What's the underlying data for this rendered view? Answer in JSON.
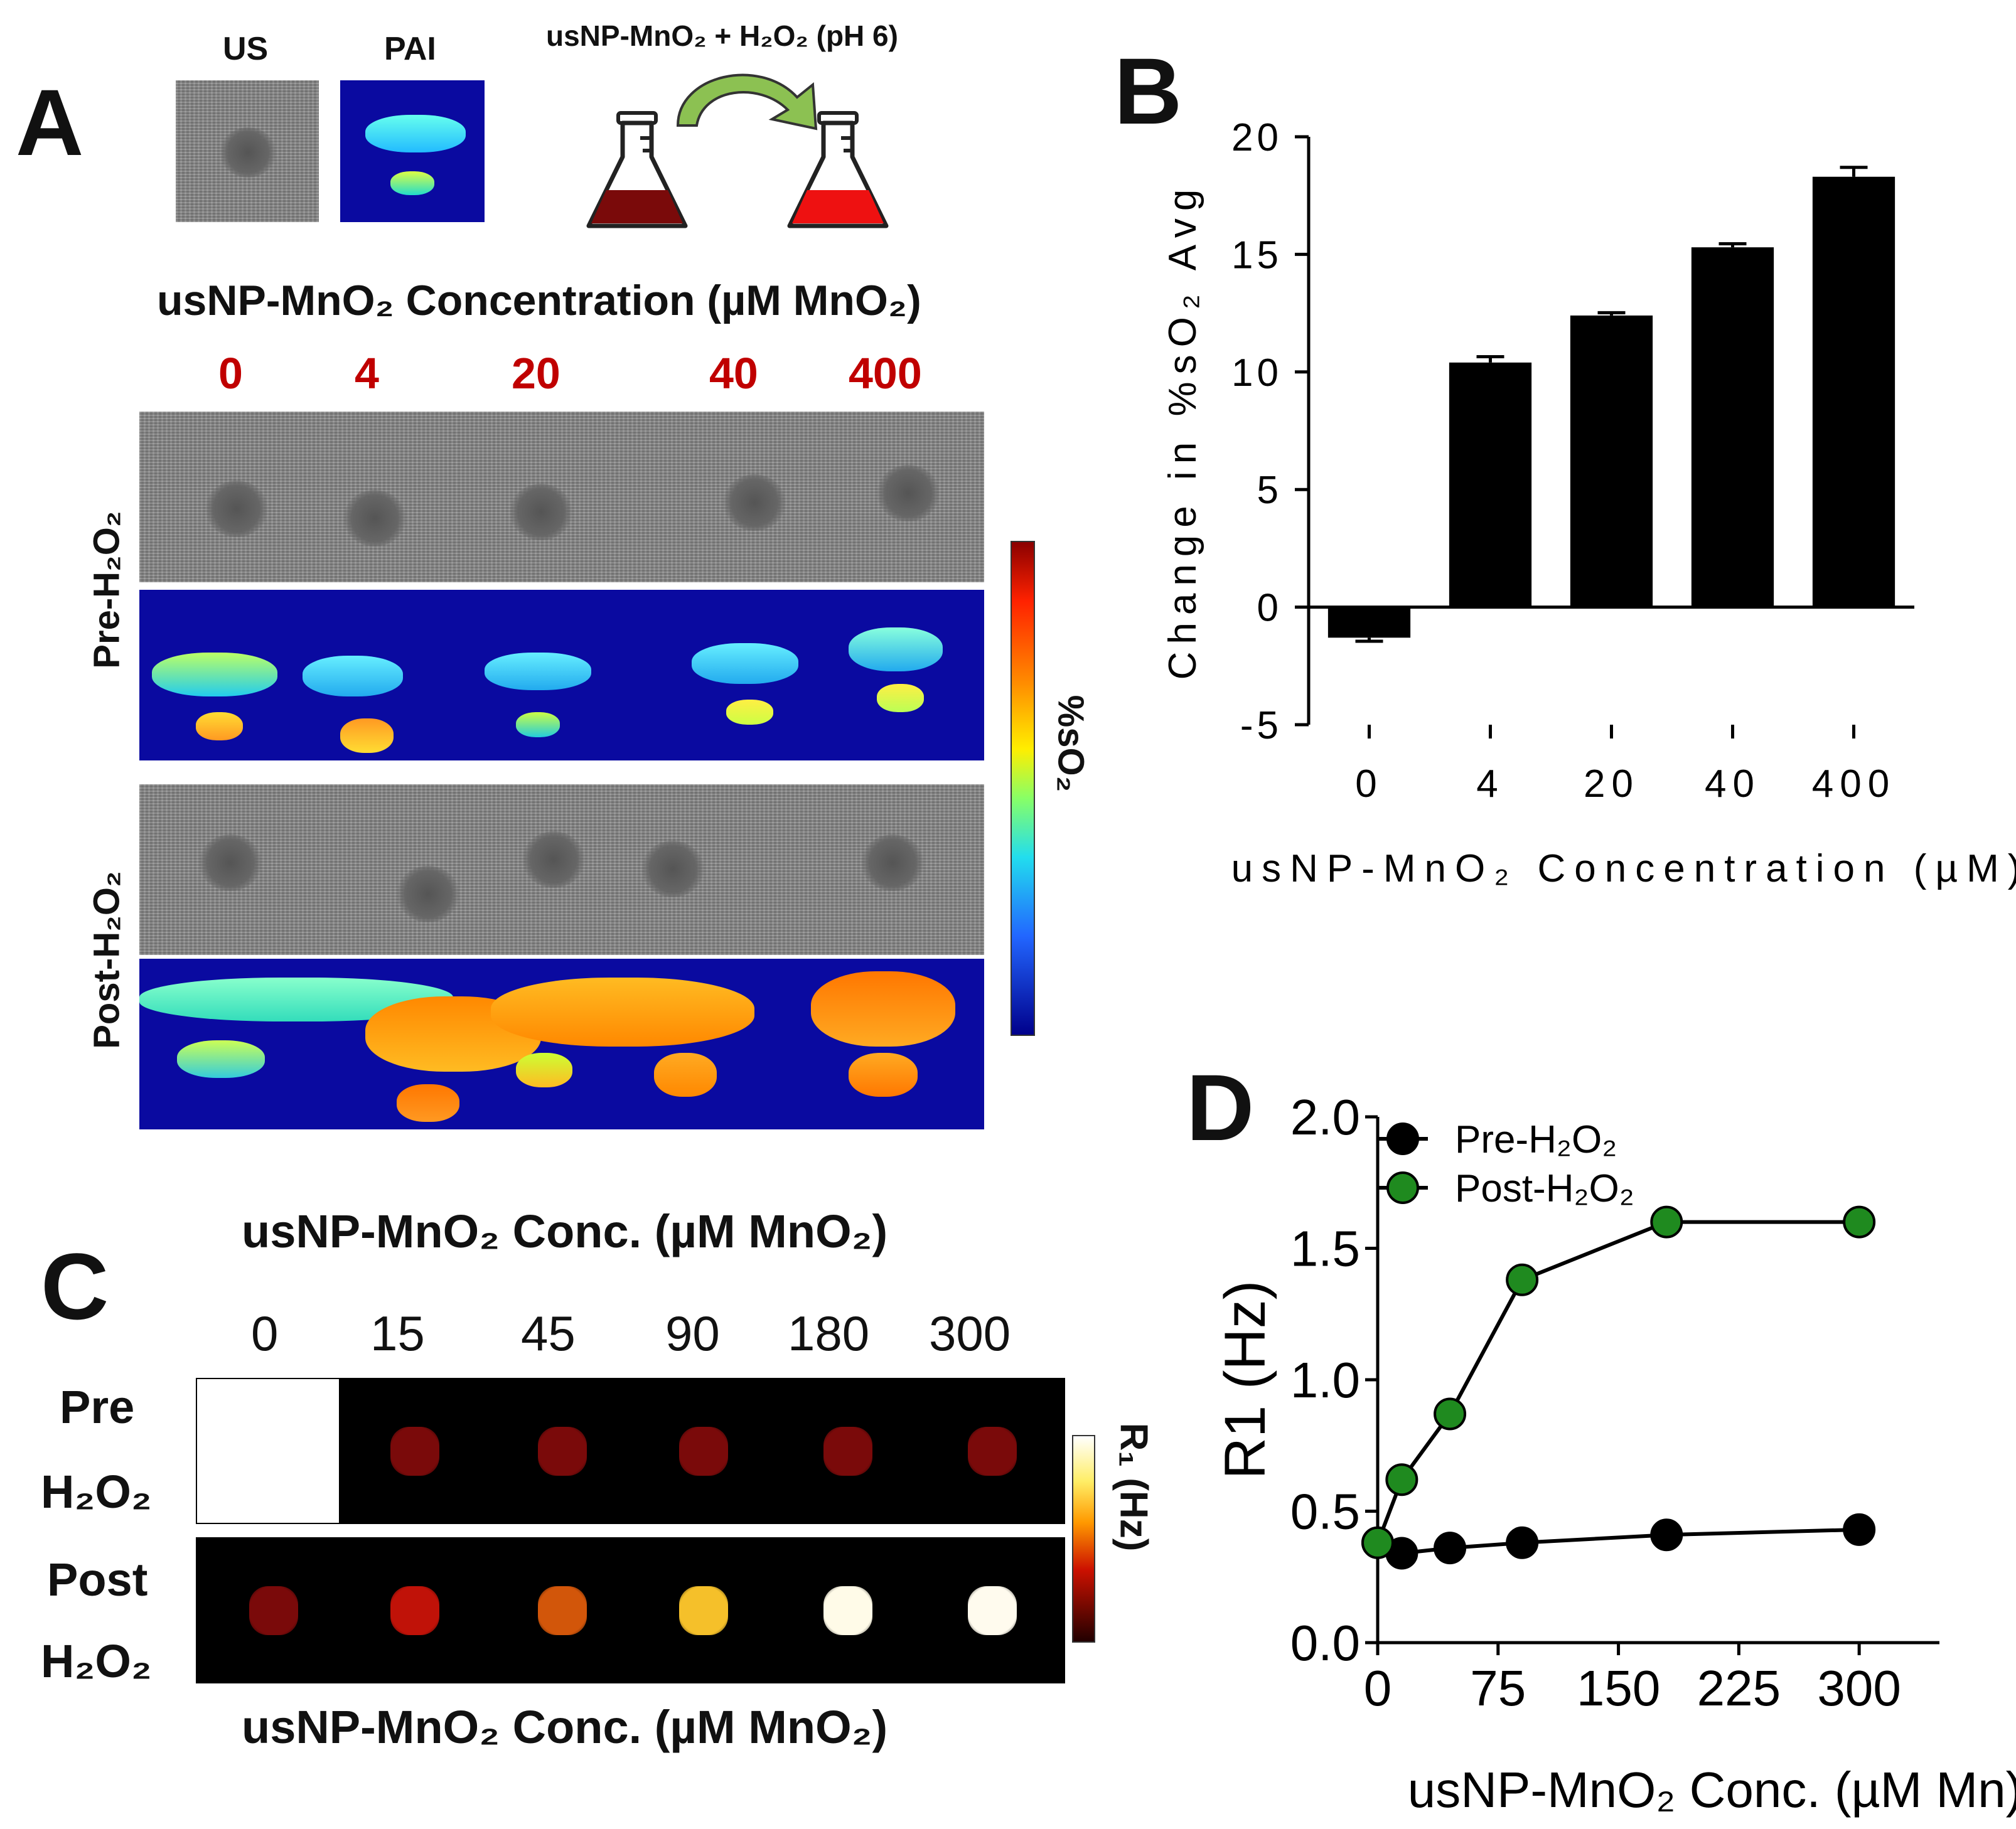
{
  "panelA": {
    "letter": "A",
    "us_label": "US",
    "pai_label": "PAI",
    "reaction_label": "usNP-MnO₂ + H₂O₂ (pH 6)",
    "concentration_title": "usNP-MnO₂ Concentration (µM MnO₂)",
    "concentrations": [
      "0",
      "4",
      "20",
      "40",
      "400"
    ],
    "pre_label": "Pre-H₂O₂",
    "post_label": "Post-H₂O₂",
    "colorbar_label": "%sO₂"
  },
  "panelC": {
    "letter": "C",
    "top_title": "usNP-MnO₂ Conc. (µM MnO₂)",
    "bottom_title": "usNP-MnO₂ Conc. (µM MnO₂)",
    "concentrations": [
      "0",
      "15",
      "45",
      "90",
      "180",
      "300"
    ],
    "pre_label_1": "Pre",
    "pre_label_2": "H₂O₂",
    "post_label_1": "Post",
    "post_label_2": "H₂O₂",
    "colorbar_label": "R₁ (Hz)",
    "pre_colors": [
      "#ffffff",
      "#7a0a0a",
      "#7a0a0a",
      "#7a0a0a",
      "#7a0a0a",
      "#7a0a0a"
    ],
    "post_colors": [
      "#7a0a0a",
      "#c01208",
      "#d2560a",
      "#f5c02a",
      "#fffbe8",
      "#fffbee"
    ]
  },
  "panelB": {
    "letter": "B"
  },
  "panelD": {
    "letter": "D"
  },
  "chart_data": [
    {
      "id": "B",
      "type": "bar",
      "categories": [
        "0",
        "4",
        "20",
        "40",
        "400"
      ],
      "values": [
        -1.3,
        10.4,
        12.4,
        15.3,
        18.3
      ],
      "errors": [
        0.15,
        0.25,
        0.12,
        0.15,
        0.4
      ],
      "ylabel": "Change in %sO₂ Avg",
      "xlabel": "usNP-MnO₂ Concentration (µM)",
      "ylim": [
        -5,
        20
      ],
      "yticks": [
        "20",
        "15",
        "10",
        "5",
        "0",
        "-5"
      ],
      "ytick_values": [
        20,
        15,
        10,
        5,
        0,
        -5
      ]
    },
    {
      "id": "D",
      "type": "line",
      "xlabel": "usNP-MnO₂ Conc. (µM Mn)",
      "ylabel": "R1 (Hz)",
      "xlim": [
        0,
        350
      ],
      "ylim": [
        0,
        2.0
      ],
      "xticks": [
        "0",
        "75",
        "150",
        "225",
        "300"
      ],
      "xtick_values": [
        0,
        75,
        150,
        225,
        300
      ],
      "yticks": [
        "0.0",
        "0.5",
        "1.0",
        "1.5",
        "2.0"
      ],
      "ytick_values": [
        0,
        0.5,
        1.0,
        1.5,
        2.0
      ],
      "series": [
        {
          "name": "Pre-H₂O₂",
          "color": "#000000",
          "x": [
            0,
            15,
            45,
            90,
            180,
            300
          ],
          "y": [
            0.38,
            0.34,
            0.36,
            0.38,
            0.41,
            0.43
          ]
        },
        {
          "name": "Post-H₂O₂",
          "color": "#1f8a1f",
          "x": [
            0,
            15,
            45,
            90,
            180,
            300
          ],
          "y": [
            0.38,
            0.62,
            0.87,
            1.38,
            1.6,
            1.6
          ]
        }
      ]
    }
  ]
}
